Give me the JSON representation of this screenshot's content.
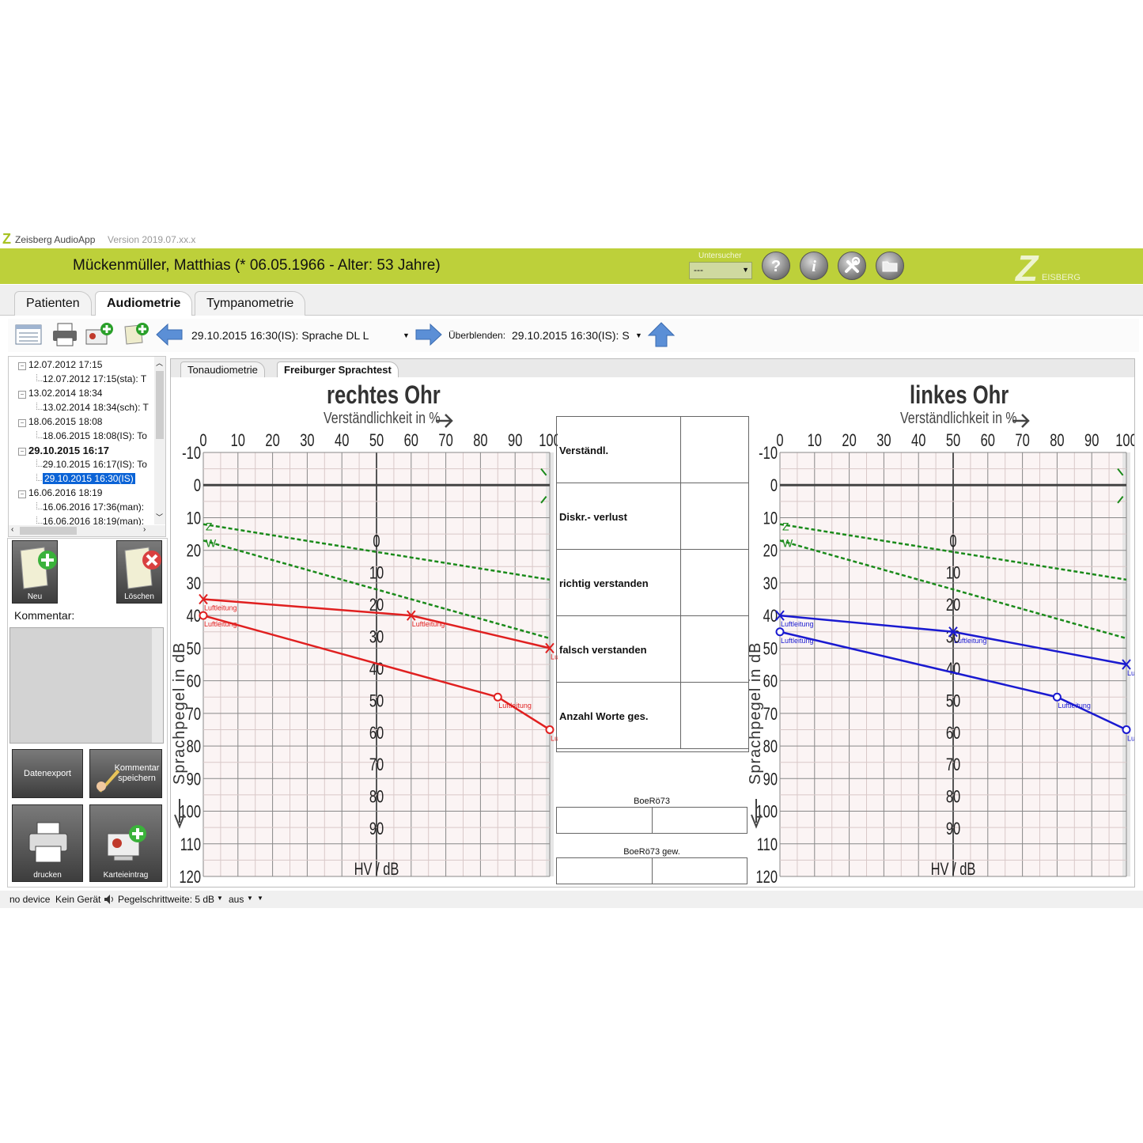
{
  "app": {
    "title": "Zeisberg AudioApp",
    "version": "Version 2019.07.xx.x"
  },
  "header": {
    "patient": "Mückenmüller, Matthias (* 06.05.1966 - Alter: 53 Jahre)",
    "examiner_label": "Untersucher",
    "examiner_value": "---",
    "brand_letter": "Z",
    "brand_text": "EISBERG",
    "help_glyph": "?",
    "info_glyph": "i",
    "accent_color": "#bdd03a"
  },
  "tabs": [
    {
      "label": "Patienten",
      "active": false
    },
    {
      "label": "Audiometrie",
      "active": true
    },
    {
      "label": "Tympanometrie",
      "active": false
    }
  ],
  "toolbar": {
    "measurement": "29.10.2015 16:30(IS): Sprache DL L",
    "overlay_label": "Überblenden:",
    "overlay_value": "29.10.2015 16:30(IS): S"
  },
  "tree": [
    {
      "text": "12.07.2012 17:15",
      "level": 0,
      "bold": false,
      "selected": false
    },
    {
      "text": "12.07.2012 17:15(sta): T",
      "level": 1,
      "bold": false,
      "selected": false
    },
    {
      "text": "13.02.2014 18:34",
      "level": 0,
      "bold": false,
      "selected": false
    },
    {
      "text": "13.02.2014 18:34(sch): T",
      "level": 1,
      "bold": false,
      "selected": false
    },
    {
      "text": "18.06.2015 18:08",
      "level": 0,
      "bold": false,
      "selected": false
    },
    {
      "text": "18.06.2015 18:08(IS): To",
      "level": 1,
      "bold": false,
      "selected": false
    },
    {
      "text": "29.10.2015 16:17",
      "level": 0,
      "bold": true,
      "selected": false
    },
    {
      "text": "29.10.2015 16:17(IS): To",
      "level": 1,
      "bold": false,
      "selected": false
    },
    {
      "text": "29.10.2015 16:30(IS)",
      "level": 1,
      "bold": false,
      "selected": true
    },
    {
      "text": "16.06.2016 18:19",
      "level": 0,
      "bold": false,
      "selected": false
    },
    {
      "text": "16.06.2016 17:36(man):",
      "level": 1,
      "bold": false,
      "selected": false
    },
    {
      "text": "16.06.2016 18:19(man):",
      "level": 1,
      "bold": false,
      "selected": false
    }
  ],
  "side": {
    "new_label": "Neu",
    "delete_label": "Löschen",
    "comment_label": "Kommentar:",
    "export_label": "Datenexport",
    "save_comment_label": "Kommentar speichern",
    "print_label": "drucken",
    "record_label": "Karteieintrag"
  },
  "subtabs": [
    {
      "label": "Tonaudiometrie",
      "active": false
    },
    {
      "label": "Freiburger Sprachtest",
      "active": true
    }
  ],
  "chart": {
    "ylabel": "Sprachpegel in dB",
    "xlabel": "Verständlichkeit in %",
    "bottom_label": "HV / dB",
    "x_ticks": [
      "0",
      "10",
      "20",
      "30",
      "40",
      "50",
      "60",
      "70",
      "80",
      "90",
      "100"
    ],
    "y_ticks": [
      "-10",
      "0",
      "10",
      "20",
      "30",
      "40",
      "50",
      "60",
      "70",
      "80",
      "90",
      "100",
      "110",
      "120"
    ],
    "hv_ticks": [
      "0",
      "10",
      "20",
      "30",
      "40",
      "50",
      "60",
      "70",
      "80",
      "90"
    ],
    "reference_labels": [
      "Z",
      "W"
    ],
    "point_label": "Luftleitung",
    "right_color": "#e02020",
    "left_color": "#1a1ad0",
    "reference_color": "#1a8a1a"
  },
  "chart_data": [
    {
      "type": "line",
      "title": "rechtes Ohr",
      "xlabel": "Verständlichkeit in %",
      "ylabel": "Sprachpegel in dB",
      "xlim": [
        0,
        100
      ],
      "ylim": [
        120,
        -10
      ],
      "series": [
        {
          "name": "Luftleitung",
          "marker": "x",
          "x": [
            0,
            60,
            100
          ],
          "y": [
            35,
            40,
            50
          ]
        },
        {
          "name": "Luftleitung",
          "marker": "o",
          "x": [
            0,
            85,
            100
          ],
          "y": [
            40,
            65,
            75
          ]
        },
        {
          "name": "Z",
          "style": "dashed",
          "x": [
            0,
            100
          ],
          "y": [
            12,
            29
          ]
        },
        {
          "name": "W",
          "style": "dashed",
          "x": [
            0,
            100
          ],
          "y": [
            17,
            47
          ]
        }
      ]
    },
    {
      "type": "line",
      "title": "linkes Ohr",
      "xlabel": "Verständlichkeit in %",
      "ylabel": "Sprachpegel in dB",
      "xlim": [
        0,
        100
      ],
      "ylim": [
        120,
        -10
      ],
      "series": [
        {
          "name": "Luftleitung",
          "marker": "x",
          "x": [
            0,
            50,
            100
          ],
          "y": [
            40,
            45,
            55
          ]
        },
        {
          "name": "Luftleitung",
          "marker": "o",
          "x": [
            0,
            80,
            100
          ],
          "y": [
            45,
            65,
            75
          ]
        },
        {
          "name": "Z",
          "style": "dashed",
          "x": [
            0,
            100
          ],
          "y": [
            12,
            29
          ]
        },
        {
          "name": "W",
          "style": "dashed",
          "x": [
            0,
            100
          ],
          "y": [
            17,
            47
          ]
        }
      ]
    }
  ],
  "results": {
    "rows": [
      "Verständl.",
      "Diskr.- verlust",
      "richtig verstanden",
      "falsch verstanden",
      "Anzahl Worte ges."
    ],
    "boe_label": "BoeRö73",
    "boe_weighted_label": "BoeRö73 gew."
  },
  "status": {
    "device": "no device",
    "device2": "Kein Gerät",
    "step": "Pegelschrittweite: 5 dB",
    "mode": "aus"
  }
}
